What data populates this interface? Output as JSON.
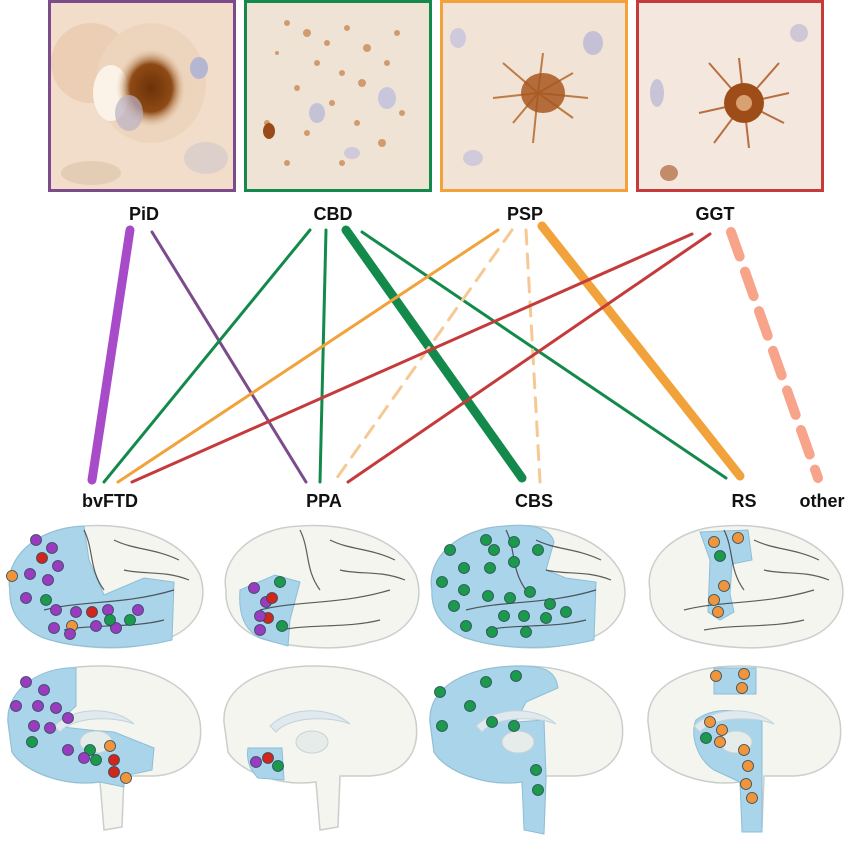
{
  "colors": {
    "PiD": "#7b4b8c",
    "CBD": "#138a4b",
    "PSP": "#f2a23a",
    "GGT": "#c53a3a",
    "other": "#f7a48a",
    "region": "#a9d4ea",
    "brain_fill": "#f4f5ee",
    "brain_stroke": "#c9cfcc",
    "dot_purple": "#9b3bbf",
    "dot_green": "#1a9a4a",
    "dot_red": "#d2261c",
    "dot_orange": "#f2943a"
  },
  "pathologies": [
    {
      "id": "PiD",
      "label": "PiD",
      "color": "#7b4b8c",
      "stain": "pick-body-stain-image"
    },
    {
      "id": "CBD",
      "label": "CBD",
      "color": "#138a4b",
      "stain": "astrocytic-plaque-stain-image"
    },
    {
      "id": "PSP",
      "label": "PSP",
      "color": "#f2a23a",
      "stain": "tufted-astrocyte-stain-image"
    },
    {
      "id": "GGT",
      "label": "GGT",
      "color": "#c53a3a",
      "stain": "globular-inclusion-stain-image"
    }
  ],
  "syndromes": [
    {
      "id": "bvFTD",
      "label": "bvFTD"
    },
    {
      "id": "PPA",
      "label": "PPA"
    },
    {
      "id": "CBS",
      "label": "CBS"
    },
    {
      "id": "RS",
      "label": "RS"
    },
    {
      "id": "other",
      "label": "other"
    }
  ],
  "links": [
    {
      "from": "PiD",
      "to": "bvFTD",
      "strength": "strong",
      "style": "solid"
    },
    {
      "from": "PiD",
      "to": "PPA",
      "strength": "weak",
      "style": "solid"
    },
    {
      "from": "CBD",
      "to": "bvFTD",
      "strength": "weak",
      "style": "solid"
    },
    {
      "from": "CBD",
      "to": "PPA",
      "strength": "weak",
      "style": "solid"
    },
    {
      "from": "CBD",
      "to": "CBS",
      "strength": "strong",
      "style": "solid"
    },
    {
      "from": "CBD",
      "to": "RS",
      "strength": "weak",
      "style": "solid"
    },
    {
      "from": "PSP",
      "to": "bvFTD",
      "strength": "weak",
      "style": "solid"
    },
    {
      "from": "PSP",
      "to": "PPA",
      "strength": "weak",
      "style": "dashed"
    },
    {
      "from": "PSP",
      "to": "CBS",
      "strength": "weak",
      "style": "dashed"
    },
    {
      "from": "PSP",
      "to": "RS",
      "strength": "strong",
      "style": "solid"
    },
    {
      "from": "GGT",
      "to": "bvFTD",
      "strength": "weak",
      "style": "solid"
    },
    {
      "from": "GGT",
      "to": "PPA",
      "strength": "weak",
      "style": "solid"
    },
    {
      "from": "GGT",
      "to": "other",
      "strength": "strong",
      "style": "dashed"
    }
  ],
  "brain_maps": [
    {
      "syndrome": "bvFTD",
      "lateral_dots": [
        "purple",
        "purple",
        "red",
        "purple",
        "orange",
        "purple",
        "purple",
        "green",
        "purple",
        "purple",
        "purple",
        "red",
        "purple",
        "orange",
        "purple",
        "purple",
        "purple",
        "purple",
        "green",
        "purple",
        "green"
      ],
      "medial_dots": [
        "purple",
        "purple",
        "purple",
        "purple",
        "purple",
        "green",
        "purple",
        "purple",
        "purple",
        "orange",
        "green",
        "red",
        "red",
        "orange",
        "green",
        "purple",
        "purple"
      ]
    },
    {
      "syndrome": "PPA",
      "lateral_dots": [
        "purple",
        "green",
        "purple",
        "red",
        "red",
        "purple",
        "purple",
        "green"
      ],
      "medial_dots": [
        "purple",
        "red",
        "green"
      ]
    },
    {
      "syndrome": "CBS",
      "lateral_dots": [
        "green",
        "green",
        "green",
        "green",
        "green",
        "green",
        "green",
        "green",
        "green",
        "green",
        "green",
        "green",
        "green",
        "green",
        "green",
        "green",
        "green",
        "green",
        "green",
        "green"
      ],
      "medial_dots": [
        "green",
        "green",
        "green",
        "green",
        "green",
        "green",
        "green",
        "green",
        "green"
      ]
    },
    {
      "syndrome": "RS",
      "lateral_dots": [
        "orange",
        "orange",
        "green",
        "orange",
        "orange",
        "orange"
      ],
      "medial_dots": [
        "orange",
        "orange",
        "orange",
        "orange",
        "orange",
        "green",
        "orange",
        "orange",
        "orange"
      ]
    }
  ]
}
